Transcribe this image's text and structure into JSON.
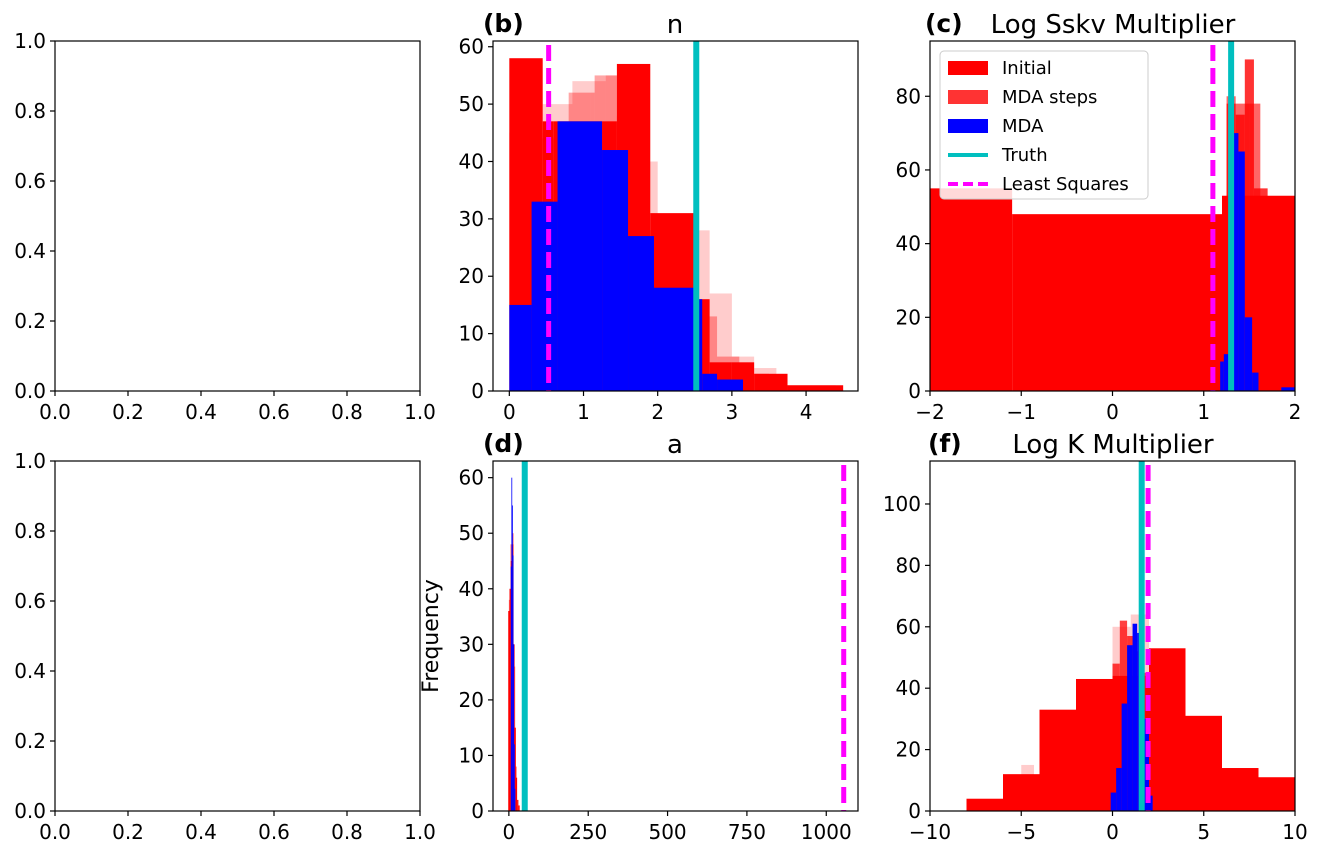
{
  "colors": {
    "initial": "#ff0000",
    "mda_steps": "#ff0000",
    "mda": "#0000ff",
    "truth": "#00bfbf",
    "least_squares": "#ff00ff"
  },
  "chart_data": [
    {
      "id": "a",
      "type": "empty",
      "title": "",
      "panel_label": "",
      "xlim": [
        0,
        1
      ],
      "ylim": [
        0,
        1
      ],
      "xticks": [
        0.0,
        0.2,
        0.4,
        0.6,
        0.8,
        1.0
      ],
      "xtick_labels": [
        "0.0",
        "0.2",
        "0.4",
        "0.6",
        "0.8",
        "1.0"
      ],
      "yticks": [
        0.0,
        0.2,
        0.4,
        0.6,
        0.8,
        1.0
      ],
      "ytick_labels": [
        "0.0",
        "0.2",
        "0.4",
        "0.6",
        "0.8",
        "1.0"
      ]
    },
    {
      "id": "b",
      "type": "bar",
      "title": "n",
      "panel_label": "(b)",
      "xlim": [
        -0.22,
        4.7
      ],
      "ylim": [
        0,
        61
      ],
      "xticks": [
        0,
        1,
        2,
        3,
        4
      ],
      "xtick_labels": [
        "0",
        "1",
        "2",
        "3",
        "4"
      ],
      "yticks": [
        0,
        10,
        20,
        30,
        40,
        50,
        60
      ],
      "ytick_labels": [
        "0",
        "10",
        "20",
        "30",
        "40",
        "50",
        "60"
      ],
      "truth": 2.52,
      "least_squares": 0.53,
      "series": [
        {
          "name": "Initial",
          "opacity": 1.0,
          "bins": [
            [
              0.0,
              0.45,
              58
            ],
            [
              0.45,
              0.6,
              47
            ],
            [
              0.6,
              0.98,
              47
            ],
            [
              0.98,
              1.25,
              47
            ],
            [
              1.25,
              1.45,
              47
            ],
            [
              1.45,
              1.9,
              57
            ],
            [
              1.9,
              2.5,
              31
            ],
            [
              2.5,
              2.7,
              16
            ],
            [
              2.7,
              3.0,
              5
            ],
            [
              3.0,
              3.3,
              5
            ],
            [
              3.3,
              3.75,
              3
            ],
            [
              3.75,
              4.5,
              1
            ]
          ]
        },
        {
          "name": "MDA steps",
          "opacity": 0.2,
          "bins": [
            [
              0.0,
              0.45,
              45
            ],
            [
              0.45,
              0.85,
              50
            ],
            [
              0.85,
              1.1,
              54
            ],
            [
              1.1,
              1.3,
              54
            ],
            [
              1.3,
              1.6,
              55
            ],
            [
              1.6,
              1.8,
              52
            ],
            [
              1.8,
              2.0,
              40
            ],
            [
              2.0,
              2.3,
              28
            ],
            [
              2.3,
              2.7,
              28
            ],
            [
              2.7,
              3.0,
              17
            ],
            [
              3.0,
              3.3,
              6
            ],
            [
              3.3,
              3.6,
              4
            ],
            [
              3.6,
              4.0,
              1
            ],
            [
              4.0,
              4.4,
              1
            ]
          ]
        },
        {
          "name": "MDA steps",
          "opacity": 0.35,
          "bins": [
            [
              0.1,
              0.4,
              32
            ],
            [
              0.4,
              0.8,
              44
            ],
            [
              0.8,
              1.15,
              52
            ],
            [
              1.15,
              1.45,
              55
            ],
            [
              1.45,
              1.75,
              48
            ],
            [
              1.75,
              2.1,
              28
            ],
            [
              2.1,
              2.5,
              20
            ],
            [
              2.5,
              2.8,
              13
            ],
            [
              2.8,
              3.1,
              6
            ],
            [
              3.1,
              3.5,
              3
            ]
          ]
        },
        {
          "name": "MDA",
          "opacity": 1.0,
          "bins": [
            [
              0.0,
              0.3,
              15
            ],
            [
              0.3,
              0.65,
              33
            ],
            [
              0.65,
              1.25,
              47
            ],
            [
              1.25,
              1.6,
              42
            ],
            [
              1.6,
              1.95,
              27
            ],
            [
              1.95,
              2.5,
              18
            ],
            [
              2.5,
              2.6,
              16
            ],
            [
              2.6,
              2.8,
              3
            ],
            [
              2.8,
              3.15,
              2
            ]
          ]
        }
      ]
    },
    {
      "id": "c",
      "type": "bar",
      "title": "Log Sskv Multiplier",
      "panel_label": "(c)",
      "xlim": [
        -2,
        2
      ],
      "ylim": [
        0,
        95
      ],
      "xticks": [
        -2,
        -1,
        0,
        1,
        2
      ],
      "xtick_labels": [
        "−2",
        "−1",
        "0",
        "1",
        "2"
      ],
      "yticks": [
        0,
        20,
        40,
        60,
        80
      ],
      "ytick_labels": [
        "0",
        "20",
        "40",
        "60",
        "80"
      ],
      "truth": 1.3,
      "least_squares": 1.1,
      "legend": {
        "position": "top-left",
        "entries": [
          "Initial",
          "MDA steps",
          "MDA",
          "Truth",
          "Least Squares"
        ]
      },
      "series": [
        {
          "name": "Initial",
          "opacity": 1.0,
          "bins": [
            [
              -2.4,
              -1.1,
              55
            ],
            [
              -1.1,
              1.2,
              48
            ],
            [
              1.2,
              1.6,
              53
            ],
            [
              1.6,
              2.6,
              53
            ]
          ]
        },
        {
          "name": "MDA steps",
          "opacity": 0.8,
          "bins": [
            [
              1.2,
              1.25,
              38
            ],
            [
              1.25,
              1.35,
              78
            ],
            [
              1.35,
              1.45,
              75
            ],
            [
              1.45,
              1.55,
              90
            ],
            [
              1.55,
              1.7,
              55
            ],
            [
              1.7,
              1.85,
              20
            ],
            [
              1.85,
              2.0,
              5
            ]
          ]
        },
        {
          "name": "MDA steps",
          "opacity": 0.6,
          "bins": [
            [
              1.25,
              1.35,
              80
            ],
            [
              1.35,
              1.5,
              78
            ],
            [
              1.5,
              1.62,
              78
            ]
          ]
        },
        {
          "name": "MDA",
          "opacity": 1.0,
          "bins": [
            [
              1.18,
              1.22,
              8
            ],
            [
              1.22,
              1.27,
              10
            ],
            [
              1.27,
              1.33,
              40
            ],
            [
              1.33,
              1.38,
              70
            ],
            [
              1.38,
              1.45,
              65
            ],
            [
              1.45,
              1.53,
              20
            ],
            [
              1.53,
              1.6,
              5
            ],
            [
              1.85,
              2.0,
              1
            ]
          ]
        }
      ]
    },
    {
      "id": "e",
      "type": "empty",
      "title": "",
      "panel_label": "",
      "xlim": [
        0,
        1
      ],
      "ylim": [
        0,
        1
      ],
      "xticks": [
        0.0,
        0.2,
        0.4,
        0.6,
        0.8,
        1.0
      ],
      "xtick_labels": [
        "0.0",
        "0.2",
        "0.4",
        "0.6",
        "0.8",
        "1.0"
      ],
      "yticks": [
        0.0,
        0.2,
        0.4,
        0.6,
        0.8,
        1.0
      ],
      "ytick_labels": [
        "0.0",
        "0.2",
        "0.4",
        "0.6",
        "0.8",
        "1.0"
      ]
    },
    {
      "id": "d",
      "type": "bar",
      "title": "a",
      "panel_label": "(d)",
      "ylabel": "Frequency",
      "xlim": [
        -50,
        1100
      ],
      "ylim": [
        0,
        63
      ],
      "xticks": [
        0,
        250,
        500,
        750,
        1000
      ],
      "xtick_labels": [
        "0",
        "250",
        "500",
        "750",
        "1000"
      ],
      "yticks": [
        0,
        10,
        20,
        30,
        40,
        50,
        60
      ],
      "ytick_labels": [
        "0",
        "10",
        "20",
        "30",
        "40",
        "50",
        "60"
      ],
      "truth": 50,
      "least_squares": 1055,
      "series": [
        {
          "name": "Initial",
          "opacity": 1.0,
          "bins": [
            [
              -2,
              2,
              36
            ],
            [
              2,
              6,
              40
            ],
            [
              6,
              10,
              45
            ],
            [
              10,
              14,
              48
            ],
            [
              14,
              18,
              30
            ],
            [
              18,
              22,
              15
            ],
            [
              22,
              26,
              6
            ],
            [
              26,
              30,
              2
            ],
            [
              30,
              34,
              1
            ]
          ]
        },
        {
          "name": "MDA steps",
          "opacity": 0.5,
          "bins": [
            [
              0,
              5,
              38
            ],
            [
              5,
              10,
              48
            ],
            [
              10,
              15,
              50
            ],
            [
              15,
              20,
              26
            ],
            [
              20,
              25,
              8
            ]
          ]
        },
        {
          "name": "MDA",
          "opacity": 1.0,
          "bins": [
            [
              6,
              8,
              44
            ],
            [
              8,
              10,
              60
            ],
            [
              10,
              12,
              55
            ],
            [
              12,
              14,
              46
            ],
            [
              14,
              16,
              30
            ],
            [
              16,
              18,
              12
            ],
            [
              18,
              20,
              4
            ]
          ]
        }
      ]
    },
    {
      "id": "f",
      "type": "bar",
      "title": "Log K Multiplier",
      "panel_label": "(f)",
      "xlim": [
        -10,
        10
      ],
      "ylim": [
        0,
        114
      ],
      "xticks": [
        -10,
        -5,
        0,
        5,
        10
      ],
      "xtick_labels": [
        "−10",
        "−5",
        "0",
        "5",
        "10"
      ],
      "yticks": [
        0,
        20,
        40,
        60,
        80,
        100
      ],
      "ytick_labels": [
        "0",
        "20",
        "40",
        "60",
        "80",
        "100"
      ],
      "truth": 1.6,
      "least_squares": 1.95,
      "series": [
        {
          "name": "Initial",
          "opacity": 1.0,
          "bins": [
            [
              -8,
              -6,
              4
            ],
            [
              -6,
              -4,
              12
            ],
            [
              -4,
              -2,
              33
            ],
            [
              -2,
              0,
              43
            ],
            [
              0,
              2,
              44
            ],
            [
              2,
              4,
              53
            ],
            [
              4,
              6,
              31
            ],
            [
              6,
              8,
              14
            ],
            [
              8,
              10,
              11
            ]
          ]
        },
        {
          "name": "MDA steps",
          "opacity": 0.2,
          "bins": [
            [
              -5,
              -4.3,
              15
            ],
            [
              -1,
              0,
              35
            ],
            [
              0,
              1,
              60
            ],
            [
              1,
              2,
              64
            ],
            [
              2,
              3,
              40
            ]
          ]
        },
        {
          "name": "MDA steps",
          "opacity": 0.75,
          "bins": [
            [
              0,
              0.4,
              48
            ],
            [
              0.4,
              0.8,
              62
            ],
            [
              0.8,
              1.2,
              57
            ],
            [
              1.2,
              1.7,
              52
            ],
            [
              1.7,
              2.1,
              45
            ]
          ]
        },
        {
          "name": "MDA",
          "opacity": 1.0,
          "bins": [
            [
              -0.1,
              0.2,
              6
            ],
            [
              0.2,
              0.5,
              14
            ],
            [
              0.5,
              0.8,
              35
            ],
            [
              0.8,
              1.1,
              54
            ],
            [
              1.1,
              1.35,
              61
            ],
            [
              1.35,
              1.7,
              58
            ],
            [
              1.7,
              2.0,
              30
            ],
            [
              2.0,
              2.2,
              5
            ]
          ]
        }
      ]
    }
  ]
}
